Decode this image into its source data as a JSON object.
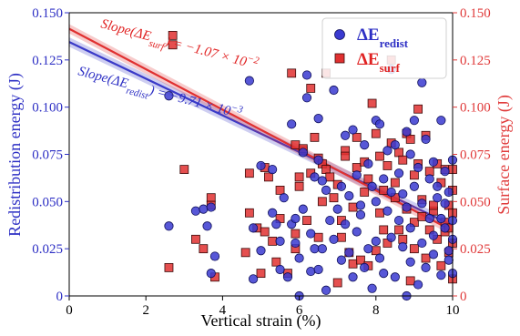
{
  "chart_data": {
    "type": "scatter",
    "xlabel": "Vertical strain (%)",
    "ylabel_left": "Redistribution energy (J)",
    "ylabel_right": "Surface energy (J)",
    "xlim": [
      0,
      10
    ],
    "ylim_left": [
      0,
      0.15
    ],
    "ylim_right": [
      0,
      0.15
    ],
    "x_ticks": [
      "0",
      "2",
      "4",
      "6",
      "8",
      "10"
    ],
    "y_ticks_left": [
      "0",
      "0.025",
      "0.050",
      "0.075",
      "0.100",
      "0.125",
      "0.150"
    ],
    "y_ticks_right": [
      "0",
      "0.025",
      "0.050",
      "0.075",
      "0.100",
      "0.125",
      "0.150"
    ],
    "legend": {
      "placement": "top-right"
    },
    "colors": {
      "redist": "#2d2fc4",
      "surf": "#e02222",
      "redist_line": "#3a3ac8",
      "surf_line": "#e03030",
      "right_axis": "#e03a3a",
      "left_axis": "#2d2fc4"
    },
    "series": [
      {
        "name": "ΔE",
        "name_sub": "redist",
        "marker": "circle",
        "axis": "left",
        "points": [
          [
            2.6,
            0.106
          ],
          [
            2.6,
            0.037
          ],
          [
            3.3,
            0.045
          ],
          [
            3.5,
            0.046
          ],
          [
            3.6,
            0.037
          ],
          [
            3.7,
            0.012
          ],
          [
            3.7,
            0.047
          ],
          [
            3.8,
            0.021
          ],
          [
            4.7,
            0.114
          ],
          [
            4.8,
            0.036
          ],
          [
            4.8,
            0.009
          ],
          [
            5.0,
            0.069
          ],
          [
            5.0,
            0.024
          ],
          [
            5.3,
            0.067
          ],
          [
            5.3,
            0.044
          ],
          [
            5.4,
            0.038
          ],
          [
            5.5,
            0.014
          ],
          [
            5.5,
            0.029
          ],
          [
            5.6,
            0.052
          ],
          [
            5.7,
            0.01
          ],
          [
            5.8,
            0.091
          ],
          [
            5.8,
            0.038
          ],
          [
            5.9,
            0.041
          ],
          [
            5.9,
            0.028
          ],
          [
            6.0,
            0.02
          ],
          [
            6.0,
            0.0
          ],
          [
            6.1,
            0.046
          ],
          [
            6.1,
            0.076
          ],
          [
            6.2,
            0.117
          ],
          [
            6.2,
            0.105
          ],
          [
            6.3,
            0.033
          ],
          [
            6.3,
            0.013
          ],
          [
            6.4,
            0.063
          ],
          [
            6.4,
            0.025
          ],
          [
            6.5,
            0.072
          ],
          [
            6.5,
            0.094
          ],
          [
            6.5,
            0.014
          ],
          [
            6.6,
            0.025
          ],
          [
            6.6,
            0.061
          ],
          [
            6.7,
            0.003
          ],
          [
            6.7,
            0.056
          ],
          [
            6.8,
            0.04
          ],
          [
            6.9,
            0.109
          ],
          [
            6.9,
            0.03
          ],
          [
            7.0,
            0.046
          ],
          [
            7.1,
            0.019
          ],
          [
            7.1,
            0.058
          ],
          [
            7.2,
            0.085
          ],
          [
            7.2,
            0.038
          ],
          [
            7.3,
            0.053
          ],
          [
            7.3,
            0.023
          ],
          [
            7.4,
            0.088
          ],
          [
            7.4,
            0.01
          ],
          [
            7.5,
            0.034
          ],
          [
            7.5,
            0.064
          ],
          [
            7.6,
            0.043
          ],
          [
            7.6,
            0.048
          ],
          [
            7.7,
            0.015
          ],
          [
            7.7,
            0.08
          ],
          [
            7.8,
            0.025
          ],
          [
            7.8,
            0.07
          ],
          [
            7.9,
            0.058
          ],
          [
            7.9,
            0.004
          ],
          [
            8.0,
            0.05
          ],
          [
            8.0,
            0.093
          ],
          [
            8.0,
            0.029
          ],
          [
            8.1,
            0.091
          ],
          [
            8.1,
            0.02
          ],
          [
            8.2,
            0.012
          ],
          [
            8.2,
            0.062
          ],
          [
            8.3,
            0.045
          ],
          [
            8.3,
            0.077
          ],
          [
            8.4,
            0.12
          ],
          [
            8.4,
            0.031
          ],
          [
            8.4,
            0.055
          ],
          [
            8.5,
            0.08
          ],
          [
            8.5,
            0.01
          ],
          [
            8.6,
            0.04
          ],
          [
            8.6,
            0.065
          ],
          [
            8.7,
            0.026
          ],
          [
            8.7,
            0.054
          ],
          [
            8.8,
            0.0
          ],
          [
            8.8,
            0.047
          ],
          [
            8.8,
            0.087
          ],
          [
            8.9,
            0.075
          ],
          [
            8.9,
            0.018
          ],
          [
            8.9,
            0.036
          ],
          [
            9.0,
            0.058
          ],
          [
            9.0,
            0.093
          ],
          [
            9.1,
            0.006
          ],
          [
            9.1,
            0.068
          ],
          [
            9.2,
            0.113
          ],
          [
            9.2,
            0.028
          ],
          [
            9.2,
            0.049
          ],
          [
            9.3,
            0.083
          ],
          [
            9.3,
            0.015
          ],
          [
            9.4,
            0.041
          ],
          [
            9.4,
            0.062
          ],
          [
            9.5,
            0.071
          ],
          [
            9.5,
            0.032
          ],
          [
            9.5,
            0.022
          ],
          [
            9.6,
            0.052
          ],
          [
            9.6,
            0.058
          ],
          [
            9.7,
            0.093
          ],
          [
            9.7,
            0.011
          ],
          [
            9.7,
            0.041
          ],
          [
            9.8,
            0.066
          ],
          [
            9.8,
            0.036
          ],
          [
            9.8,
            0.049
          ],
          [
            9.9,
            0.024
          ],
          [
            9.9,
            0.055
          ],
          [
            9.9,
            0.019
          ],
          [
            10.0,
            0.04
          ],
          [
            10.0,
            0.012
          ],
          [
            10.0,
            0.072
          ],
          [
            10.0,
            0.03
          ]
        ]
      },
      {
        "name": "ΔE",
        "name_sub": "surf",
        "marker": "square",
        "axis": "right",
        "points": [
          [
            2.6,
            0.015
          ],
          [
            2.7,
            0.138
          ],
          [
            2.7,
            0.133
          ],
          [
            3.0,
            0.067
          ],
          [
            3.3,
            0.03
          ],
          [
            3.5,
            0.025
          ],
          [
            3.7,
            0.052
          ],
          [
            3.7,
            0.048
          ],
          [
            3.8,
            0.01
          ],
          [
            4.6,
            0.023
          ],
          [
            4.7,
            0.044
          ],
          [
            4.7,
            0.065
          ],
          [
            4.9,
            0.036
          ],
          [
            5.0,
            0.012
          ],
          [
            5.1,
            0.034
          ],
          [
            5.1,
            0.068
          ],
          [
            5.2,
            0.063
          ],
          [
            5.3,
            0.029
          ],
          [
            5.4,
            0.018
          ],
          [
            5.5,
            0.056
          ],
          [
            5.5,
            0.041
          ],
          [
            5.7,
            0.012
          ],
          [
            5.8,
            0.118
          ],
          [
            5.9,
            0.08
          ],
          [
            5.9,
            0.025
          ],
          [
            5.9,
            0.033
          ],
          [
            6.0,
            0.058
          ],
          [
            6.0,
            0.063
          ],
          [
            6.1,
            0.077
          ],
          [
            6.1,
            0.078
          ],
          [
            6.2,
            0.04
          ],
          [
            6.3,
            0.065
          ],
          [
            6.3,
            0.11
          ],
          [
            6.4,
            0.084
          ],
          [
            6.5,
            0.073
          ],
          [
            6.5,
            0.031
          ],
          [
            6.6,
            0.07
          ],
          [
            6.6,
            0.05
          ],
          [
            6.7,
            0.067
          ],
          [
            6.7,
            0.118
          ],
          [
            6.8,
            0.063
          ],
          [
            6.9,
            0.052
          ],
          [
            7.0,
            0.059
          ],
          [
            7.0,
            0.007
          ],
          [
            7.1,
            0.031
          ],
          [
            7.1,
            0.04
          ],
          [
            7.2,
            0.077
          ],
          [
            7.2,
            0.074
          ],
          [
            7.3,
            0.023
          ],
          [
            7.4,
            0.017
          ],
          [
            7.4,
            0.047
          ],
          [
            7.5,
            0.084
          ],
          [
            7.5,
            0.068
          ],
          [
            7.6,
            0.019
          ],
          [
            7.7,
            0.055
          ],
          [
            7.7,
            0.071
          ],
          [
            7.8,
            0.062
          ],
          [
            7.8,
            0.016
          ],
          [
            7.9,
            0.102
          ],
          [
            8.0,
            0.086
          ],
          [
            8.0,
            0.024
          ],
          [
            8.1,
            0.074
          ],
          [
            8.1,
            0.044
          ],
          [
            8.2,
            0.056
          ],
          [
            8.2,
            0.035
          ],
          [
            8.3,
            0.069
          ],
          [
            8.3,
            0.028
          ],
          [
            8.4,
            0.125
          ],
          [
            8.4,
            0.081
          ],
          [
            8.5,
            0.052
          ],
          [
            8.5,
            0.06
          ],
          [
            8.6,
            0.076
          ],
          [
            8.6,
            0.035
          ],
          [
            8.7,
            0.072
          ],
          [
            8.7,
            0.03
          ],
          [
            8.8,
            0.086
          ],
          [
            8.8,
            0.046
          ],
          [
            8.9,
            0.083
          ],
          [
            8.9,
            0.008
          ],
          [
            9.0,
            0.064
          ],
          [
            9.0,
            0.025
          ],
          [
            9.0,
            0.039
          ],
          [
            9.1,
            0.07
          ],
          [
            9.1,
            0.099
          ],
          [
            9.2,
            0.042
          ],
          [
            9.2,
            0.051
          ],
          [
            9.3,
            0.085
          ],
          [
            9.3,
            0.02
          ],
          [
            9.4,
            0.066
          ],
          [
            9.4,
            0.035
          ],
          [
            9.5,
            0.045
          ],
          [
            9.5,
            0.048
          ],
          [
            9.6,
            0.07
          ],
          [
            9.6,
            0.03
          ],
          [
            9.7,
            0.06
          ],
          [
            9.7,
            0.016
          ],
          [
            9.8,
            0.039
          ],
          [
            9.8,
            0.034
          ],
          [
            9.8,
            0.067
          ],
          [
            9.9,
            0.048
          ],
          [
            9.9,
            0.023
          ],
          [
            9.9,
            0.036
          ],
          [
            10.0,
            0.028
          ],
          [
            10.0,
            0.067
          ],
          [
            10.0,
            0.056
          ],
          [
            10.0,
            0.009
          ],
          [
            10.0,
            0.044
          ]
        ]
      }
    ],
    "fits": [
      {
        "series": "redist",
        "x": [
          0,
          10
        ],
        "y": [
          0.1345,
          0.0374
        ],
        "band": 0.0025,
        "label_prefix": "Slope(ΔE",
        "label_sub": "redist",
        "label_value": ") = −9.71 × 10",
        "label_exp": "−3"
      },
      {
        "series": "surf",
        "x": [
          0,
          10
        ],
        "y": [
          0.1415,
          0.0345
        ],
        "band": 0.0025,
        "label_prefix": "Slope(ΔE",
        "label_sub": "surf",
        "label_value": ") = −1.07 × 10",
        "label_exp": "−2"
      }
    ]
  }
}
